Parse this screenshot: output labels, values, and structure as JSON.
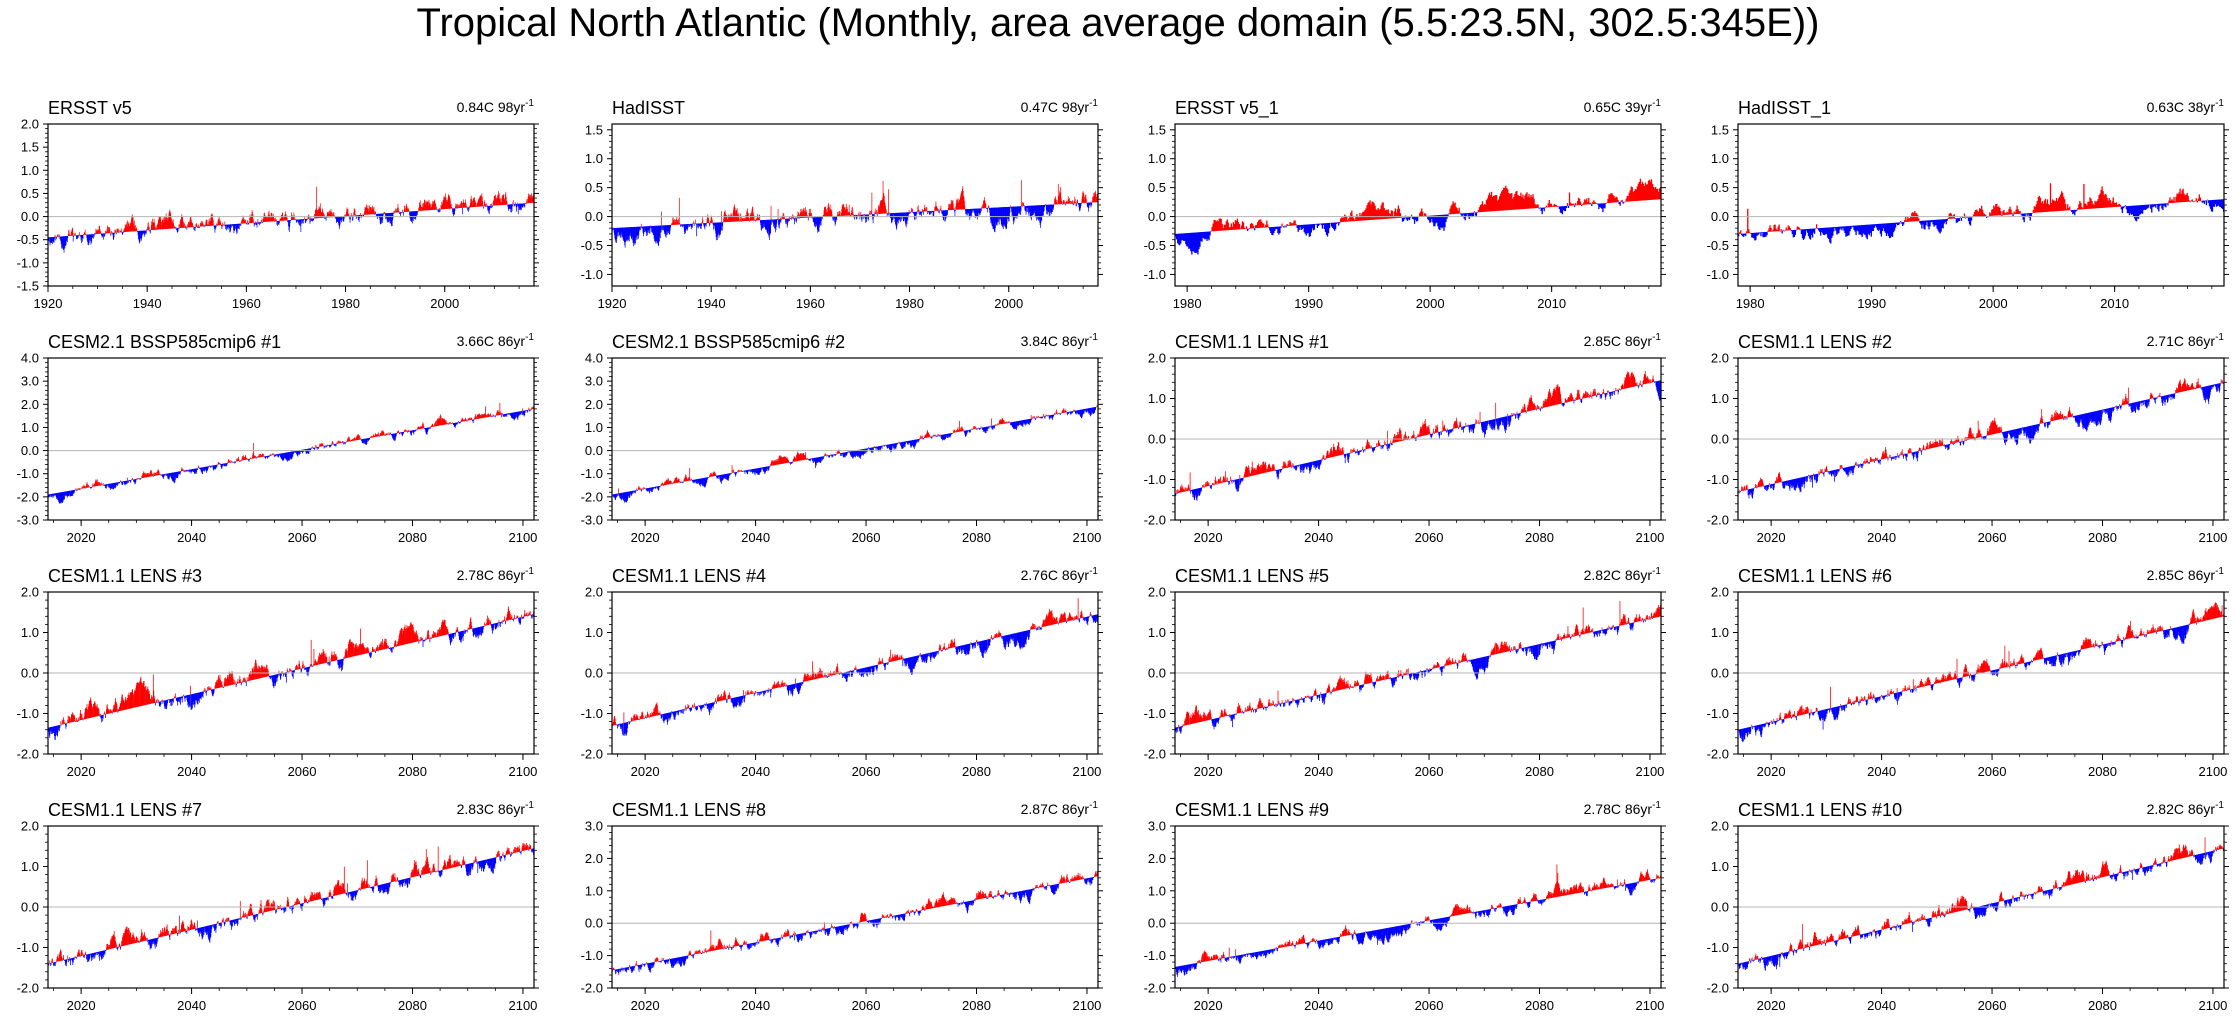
{
  "title": "Tropical North Atlantic (Monthly, area average domain (5.5:23.5N, 302.5:345E))",
  "colors": {
    "positive": "#ff0000",
    "negative": "#0000ff",
    "zero_line": "#b4b4b4",
    "frame": "#000000"
  },
  "chart_data": [
    {
      "type": "area",
      "title": "ERSST v5",
      "trend_label": "0.84C 98yr",
      "trend_superscript": "-1",
      "xlim": [
        1920,
        2018
      ],
      "ylim": [
        -1.5,
        2.0
      ],
      "yticks": [
        -1.5,
        -1.0,
        -0.5,
        0.0,
        0.5,
        1.0,
        1.5,
        2.0
      ],
      "ytick_labels": [
        "-1.5",
        "-1.0",
        "-0.5",
        "0.0",
        "0.5",
        "1.0",
        "1.5",
        "2.0"
      ],
      "xticks": [
        1920,
        1940,
        1960,
        1980,
        2000
      ],
      "xtick_labels": [
        "1920",
        "1940",
        "1960",
        "1980",
        "2000"
      ],
      "trend": {
        "start": -0.45,
        "end": 0.3
      },
      "noise": {
        "amp": 0.35,
        "seed": 11
      }
    },
    {
      "type": "area",
      "title": "HadISST",
      "trend_label": "0.47C 98yr",
      "trend_superscript": "-1",
      "xlim": [
        1920,
        2018
      ],
      "ylim": [
        -1.2,
        1.6
      ],
      "yticks": [
        -1.0,
        -0.5,
        0.0,
        0.5,
        1.0,
        1.5
      ],
      "ytick_labels": [
        "-1.0",
        "-0.5",
        "0.0",
        "0.5",
        "1.0",
        "1.5"
      ],
      "xticks": [
        1920,
        1940,
        1960,
        1980,
        2000
      ],
      "xtick_labels": [
        "1920",
        "1940",
        "1960",
        "1980",
        "2000"
      ],
      "trend": {
        "start": -0.2,
        "end": 0.25
      },
      "noise": {
        "amp": 0.3,
        "seed": 23
      }
    },
    {
      "type": "area",
      "title": "ERSST v5_1",
      "trend_label": "0.65C 39yr",
      "trend_superscript": "-1",
      "xlim": [
        1979,
        2019
      ],
      "ylim": [
        -1.2,
        1.6
      ],
      "yticks": [
        -1.0,
        -0.5,
        0.0,
        0.5,
        1.0,
        1.5
      ],
      "ytick_labels": [
        "-1.0",
        "-0.5",
        "0.0",
        "0.5",
        "1.0",
        "1.5"
      ],
      "xticks": [
        1980,
        1990,
        2000,
        2010
      ],
      "xtick_labels": [
        "1980",
        "1990",
        "2000",
        "2010"
      ],
      "trend": {
        "start": -0.3,
        "end": 0.3
      },
      "noise": {
        "amp": 0.3,
        "seed": 37
      }
    },
    {
      "type": "area",
      "title": "HadISST_1",
      "trend_label": "0.63C 38yr",
      "trend_superscript": "-1",
      "xlim": [
        1979,
        2019
      ],
      "ylim": [
        -1.2,
        1.6
      ],
      "yticks": [
        -1.0,
        -0.5,
        0.0,
        0.5,
        1.0,
        1.5
      ],
      "ytick_labels": [
        "-1.0",
        "-0.5",
        "0.0",
        "0.5",
        "1.0",
        "1.5"
      ],
      "xticks": [
        1980,
        1990,
        2000,
        2010
      ],
      "xtick_labels": [
        "1980",
        "1990",
        "2000",
        "2010"
      ],
      "trend": {
        "start": -0.3,
        "end": 0.3
      },
      "noise": {
        "amp": 0.3,
        "seed": 41
      }
    },
    {
      "type": "area",
      "title": "CESM2.1 BSSP585cmip6 #1",
      "trend_label": "3.66C 86yr",
      "trend_superscript": "-1",
      "xlim": [
        2014,
        2102
      ],
      "ylim": [
        -3.0,
        4.0
      ],
      "yticks": [
        -3.0,
        -2.0,
        -1.0,
        0.0,
        1.0,
        2.0,
        3.0,
        4.0
      ],
      "ytick_labels": [
        "-3.0",
        "-2.0",
        "-1.0",
        "0.0",
        "1.0",
        "2.0",
        "3.0",
        "4.0"
      ],
      "xticks": [
        2020,
        2040,
        2060,
        2080,
        2100
      ],
      "xtick_labels": [
        "2020",
        "2040",
        "2060",
        "2080",
        "2100"
      ],
      "trend": {
        "start": -1.9,
        "end": 1.8
      },
      "noise": {
        "amp": 0.35,
        "seed": 53
      }
    },
    {
      "type": "area",
      "title": "CESM2.1 BSSP585cmip6 #2",
      "trend_label": "3.84C 86yr",
      "trend_superscript": "-1",
      "xlim": [
        2014,
        2102
      ],
      "ylim": [
        -3.0,
        4.0
      ],
      "yticks": [
        -3.0,
        -2.0,
        -1.0,
        0.0,
        1.0,
        2.0,
        3.0,
        4.0
      ],
      "ytick_labels": [
        "-3.0",
        "-2.0",
        "-1.0",
        "0.0",
        "1.0",
        "2.0",
        "3.0",
        "4.0"
      ],
      "xticks": [
        2020,
        2040,
        2060,
        2080,
        2100
      ],
      "xtick_labels": [
        "2020",
        "2040",
        "2060",
        "2080",
        "2100"
      ],
      "trend": {
        "start": -1.9,
        "end": 1.9
      },
      "noise": {
        "amp": 0.35,
        "seed": 67
      }
    },
    {
      "type": "area",
      "title": "CESM1.1 LENS #1",
      "trend_label": "2.85C 86yr",
      "trend_superscript": "-1",
      "xlim": [
        2014,
        2102
      ],
      "ylim": [
        -2.0,
        2.0
      ],
      "yticks": [
        -2.0,
        -1.0,
        0.0,
        1.0,
        2.0
      ],
      "ytick_labels": [
        "-2.0",
        "-1.0",
        "0.0",
        "1.0",
        "2.0"
      ],
      "xticks": [
        2020,
        2040,
        2060,
        2080,
        2100
      ],
      "xtick_labels": [
        "2020",
        "2040",
        "2060",
        "2080",
        "2100"
      ],
      "trend": {
        "start": -1.35,
        "end": 1.45
      },
      "noise": {
        "amp": 0.35,
        "seed": 71
      }
    },
    {
      "type": "area",
      "title": "CESM1.1 LENS #2",
      "trend_label": "2.71C 86yr",
      "trend_superscript": "-1",
      "xlim": [
        2014,
        2102
      ],
      "ylim": [
        -2.0,
        2.0
      ],
      "yticks": [
        -2.0,
        -1.0,
        0.0,
        1.0,
        2.0
      ],
      "ytick_labels": [
        "-2.0",
        "-1.0",
        "0.0",
        "1.0",
        "2.0"
      ],
      "xticks": [
        2020,
        2040,
        2060,
        2080,
        2100
      ],
      "xtick_labels": [
        "2020",
        "2040",
        "2060",
        "2080",
        "2100"
      ],
      "trend": {
        "start": -1.3,
        "end": 1.4
      },
      "noise": {
        "amp": 0.35,
        "seed": 83
      }
    },
    {
      "type": "area",
      "title": "CESM1.1 LENS #3",
      "trend_label": "2.78C 86yr",
      "trend_superscript": "-1",
      "xlim": [
        2014,
        2102
      ],
      "ylim": [
        -2.0,
        2.0
      ],
      "yticks": [
        -2.0,
        -1.0,
        0.0,
        1.0,
        2.0
      ],
      "ytick_labels": [
        "-2.0",
        "-1.0",
        "0.0",
        "1.0",
        "2.0"
      ],
      "xticks": [
        2020,
        2040,
        2060,
        2080,
        2100
      ],
      "xtick_labels": [
        "2020",
        "2040",
        "2060",
        "2080",
        "2100"
      ],
      "trend": {
        "start": -1.35,
        "end": 1.45
      },
      "noise": {
        "amp": 0.4,
        "seed": 97
      }
    },
    {
      "type": "area",
      "title": "CESM1.1 LENS #4",
      "trend_label": "2.76C 86yr",
      "trend_superscript": "-1",
      "xlim": [
        2014,
        2102
      ],
      "ylim": [
        -2.0,
        2.0
      ],
      "yticks": [
        -2.0,
        -1.0,
        0.0,
        1.0,
        2.0
      ],
      "ytick_labels": [
        "-2.0",
        "-1.0",
        "0.0",
        "1.0",
        "2.0"
      ],
      "xticks": [
        2020,
        2040,
        2060,
        2080,
        2100
      ],
      "xtick_labels": [
        "2020",
        "2040",
        "2060",
        "2080",
        "2100"
      ],
      "trend": {
        "start": -1.3,
        "end": 1.45
      },
      "noise": {
        "amp": 0.35,
        "seed": 101
      }
    },
    {
      "type": "area",
      "title": "CESM1.1 LENS #5",
      "trend_label": "2.82C 86yr",
      "trend_superscript": "-1",
      "xlim": [
        2014,
        2102
      ],
      "ylim": [
        -2.0,
        2.0
      ],
      "yticks": [
        -2.0,
        -1.0,
        0.0,
        1.0,
        2.0
      ],
      "ytick_labels": [
        "-2.0",
        "-1.0",
        "0.0",
        "1.0",
        "2.0"
      ],
      "xticks": [
        2020,
        2040,
        2060,
        2080,
        2100
      ],
      "xtick_labels": [
        "2020",
        "2040",
        "2060",
        "2080",
        "2100"
      ],
      "trend": {
        "start": -1.35,
        "end": 1.4
      },
      "noise": {
        "amp": 0.35,
        "seed": 113
      }
    },
    {
      "type": "area",
      "title": "CESM1.1 LENS #6",
      "trend_label": "2.85C 86yr",
      "trend_superscript": "-1",
      "xlim": [
        2014,
        2102
      ],
      "ylim": [
        -2.0,
        2.0
      ],
      "yticks": [
        -2.0,
        -1.0,
        0.0,
        1.0,
        2.0
      ],
      "ytick_labels": [
        "-2.0",
        "-1.0",
        "0.0",
        "1.0",
        "2.0"
      ],
      "xticks": [
        2020,
        2040,
        2060,
        2080,
        2100
      ],
      "xtick_labels": [
        "2020",
        "2040",
        "2060",
        "2080",
        "2100"
      ],
      "trend": {
        "start": -1.4,
        "end": 1.4
      },
      "noise": {
        "amp": 0.35,
        "seed": 127
      }
    },
    {
      "type": "area",
      "title": "CESM1.1 LENS #7",
      "trend_label": "2.83C 86yr",
      "trend_superscript": "-1",
      "xlim": [
        2014,
        2102
      ],
      "ylim": [
        -2.0,
        2.0
      ],
      "yticks": [
        -2.0,
        -1.0,
        0.0,
        1.0,
        2.0
      ],
      "ytick_labels": [
        "-2.0",
        "-1.0",
        "0.0",
        "1.0",
        "2.0"
      ],
      "xticks": [
        2020,
        2040,
        2060,
        2080,
        2100
      ],
      "xtick_labels": [
        "2020",
        "2040",
        "2060",
        "2080",
        "2100"
      ],
      "trend": {
        "start": -1.4,
        "end": 1.45
      },
      "noise": {
        "amp": 0.4,
        "seed": 131
      }
    },
    {
      "type": "area",
      "title": "CESM1.1 LENS #8",
      "trend_label": "2.87C 86yr",
      "trend_superscript": "-1",
      "xlim": [
        2014,
        2102
      ],
      "ylim": [
        -2.0,
        3.0
      ],
      "yticks": [
        -2.0,
        -1.0,
        0.0,
        1.0,
        2.0,
        3.0
      ],
      "ytick_labels": [
        "-2.0",
        "-1.0",
        "0.0",
        "1.0",
        "2.0",
        "3.0"
      ],
      "xticks": [
        2020,
        2040,
        2060,
        2080,
        2100
      ],
      "xtick_labels": [
        "2020",
        "2040",
        "2060",
        "2080",
        "2100"
      ],
      "trend": {
        "start": -1.45,
        "end": 1.45
      },
      "noise": {
        "amp": 0.35,
        "seed": 149
      }
    },
    {
      "type": "area",
      "title": "CESM1.1 LENS #9",
      "trend_label": "2.78C 86yr",
      "trend_superscript": "-1",
      "xlim": [
        2014,
        2102
      ],
      "ylim": [
        -2.0,
        3.0
      ],
      "yticks": [
        -2.0,
        -1.0,
        0.0,
        1.0,
        2.0,
        3.0
      ],
      "ytick_labels": [
        "-2.0",
        "-1.0",
        "0.0",
        "1.0",
        "2.0",
        "3.0"
      ],
      "xticks": [
        2020,
        2040,
        2060,
        2080,
        2100
      ],
      "xtick_labels": [
        "2020",
        "2040",
        "2060",
        "2080",
        "2100"
      ],
      "trend": {
        "start": -1.35,
        "end": 1.4
      },
      "noise": {
        "amp": 0.35,
        "seed": 157
      }
    },
    {
      "type": "area",
      "title": "CESM1.1 LENS #10",
      "trend_label": "2.82C 86yr",
      "trend_superscript": "-1",
      "xlim": [
        2014,
        2102
      ],
      "ylim": [
        -2.0,
        2.0
      ],
      "yticks": [
        -2.0,
        -1.0,
        0.0,
        1.0,
        2.0
      ],
      "ytick_labels": [
        "-2.0",
        "-1.0",
        "0.0",
        "1.0",
        "2.0"
      ],
      "xticks": [
        2020,
        2040,
        2060,
        2080,
        2100
      ],
      "xtick_labels": [
        "2020",
        "2040",
        "2060",
        "2080",
        "2100"
      ],
      "trend": {
        "start": -1.4,
        "end": 1.45
      },
      "noise": {
        "amp": 0.35,
        "seed": 163
      }
    }
  ]
}
